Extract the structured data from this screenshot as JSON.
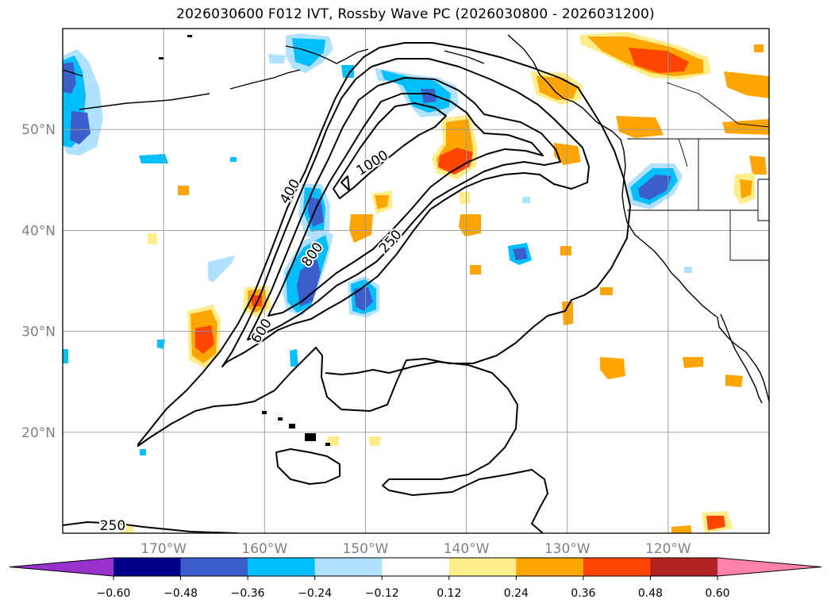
{
  "title": "2026030600 F012 IVT, Rossby Wave PC (2026030800 - 2026031200)",
  "axes": {
    "lat_labels": [
      "50°N",
      "40°N",
      "30°N",
      "20°N"
    ],
    "lon_labels": [
      "170°W",
      "160°W",
      "150°W",
      "140°W",
      "130°W",
      "120°W"
    ],
    "lat_values": [
      50,
      40,
      30,
      20
    ],
    "lon_values": [
      -170,
      -160,
      -150,
      -140,
      -130,
      -120
    ],
    "extent": {
      "lon_min": -180,
      "lon_max": -110,
      "lat_min": 10,
      "lat_max": 60
    },
    "label_color": "#808080",
    "grid": true
  },
  "contours": {
    "units": "IVT",
    "labels": [
      "250",
      "400",
      "600",
      "800",
      "1000",
      "250"
    ],
    "line_color": "#000000"
  },
  "colorbar": {
    "ticks": [
      "−0.60",
      "−0.48",
      "−0.36",
      "−0.24",
      "−0.12",
      "0.12",
      "0.24",
      "0.36",
      "0.48",
      "0.60"
    ],
    "colors": [
      "#9932cc",
      "#00008b",
      "#3a5fcd",
      "#00bfff",
      "#b0e2ff",
      "#ffffff",
      "#ffec8b",
      "#ffa500",
      "#ff4500",
      "#b22222",
      "#ff82ab"
    ],
    "extend": "both"
  },
  "fill_colors": {
    "neg_1": "#b0e2ff",
    "neg_2": "#00bfff",
    "neg_3": "#3a5fcd",
    "pos_1": "#ffec8b",
    "pos_2": "#ffa500",
    "pos_3": "#ff4500"
  }
}
